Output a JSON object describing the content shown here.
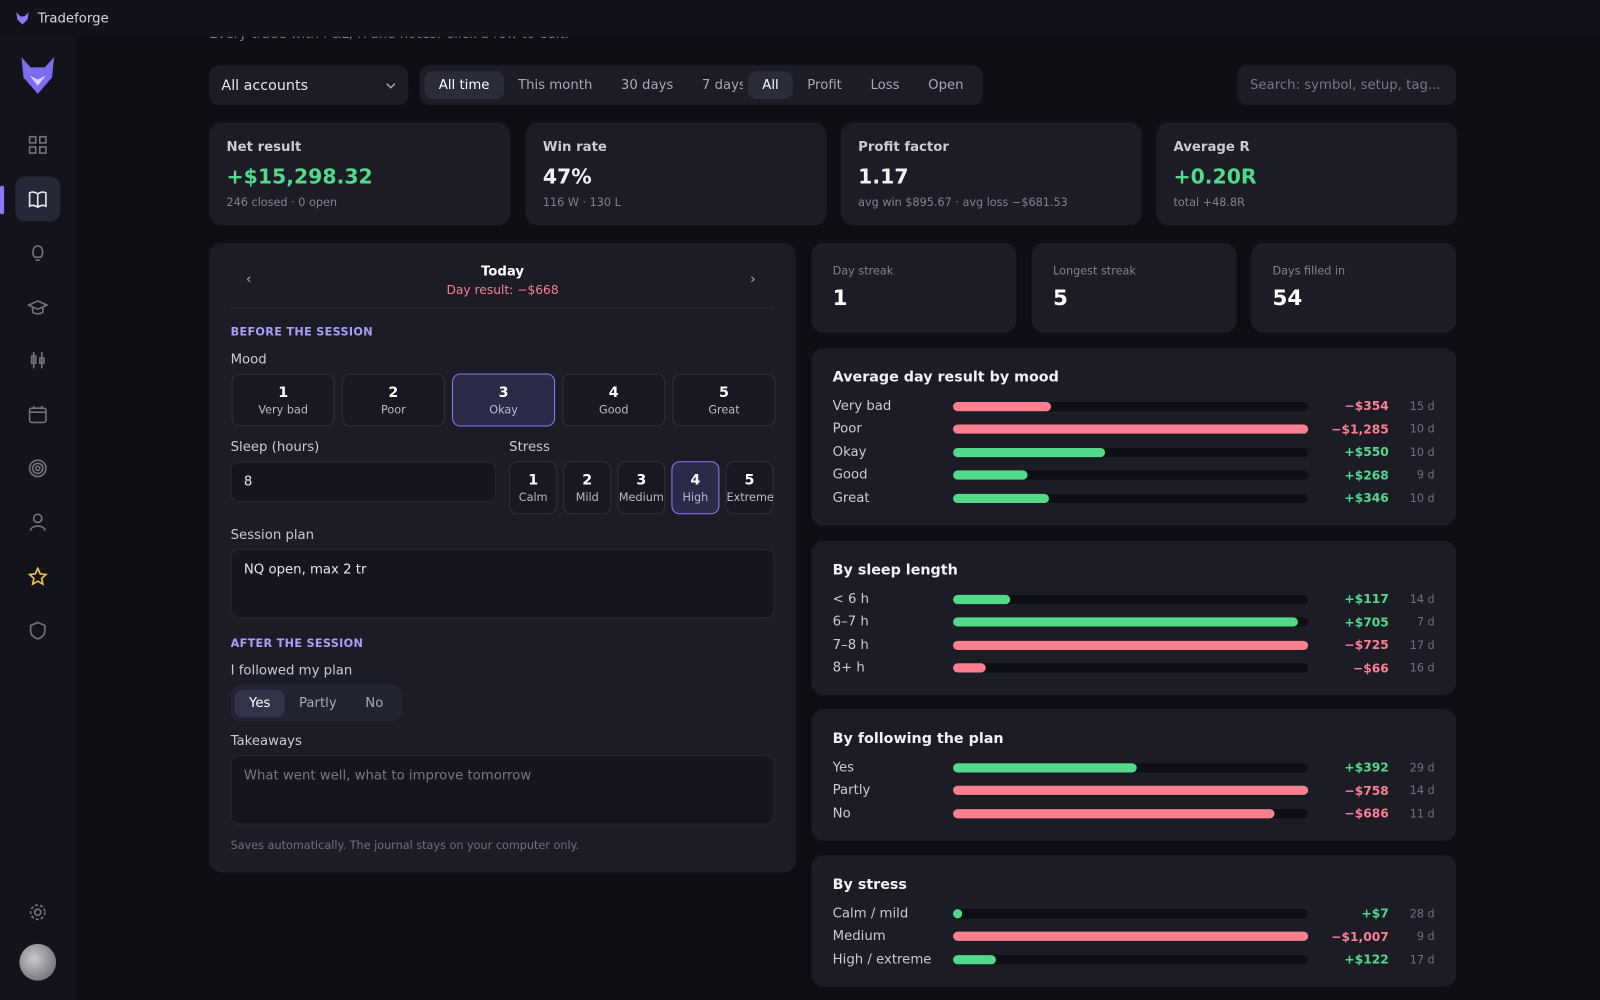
{
  "app": {
    "name": "Tradeforge"
  },
  "page": {
    "subtitle": "Every trade with P&L, R and notes. Click a row to edit."
  },
  "filters": {
    "account": "All accounts",
    "periods": [
      "All time",
      "This month",
      "30 days",
      "7 days"
    ],
    "outcomes": [
      "All",
      "Profit",
      "Loss",
      "Open"
    ],
    "search_placeholder": "Search: symbol, setup, tag..."
  },
  "stats": [
    {
      "label": "Net result",
      "value": "+$15,298.32",
      "detail": "246 closed · 0 open"
    },
    {
      "label": "Win rate",
      "value": "47%",
      "detail": "116 W · 130 L"
    },
    {
      "label": "Profit factor",
      "value": "1.17",
      "detail": "avg win $895.67 · avg loss −$681.53"
    },
    {
      "label": "Average R",
      "value": "+0.20R",
      "detail": "total +48.8R"
    }
  ],
  "journal": {
    "day": "Today",
    "day_result": "Day result: −$668",
    "before_heading": "BEFORE THE SESSION",
    "mood_label": "Mood",
    "mood_options": [
      {
        "number": 1,
        "label": "Very bad"
      },
      {
        "number": 2,
        "label": "Poor"
      },
      {
        "number": 3,
        "label": "Okay"
      },
      {
        "number": 4,
        "label": "Good"
      },
      {
        "number": 5,
        "label": "Great"
      }
    ],
    "sleep_label": "Sleep (hours)",
    "sleep_value": 8,
    "stress_label": "Stress",
    "stress_options": [
      {
        "number": 1,
        "label": "Calm"
      },
      {
        "number": 2,
        "label": "Mild"
      },
      {
        "number": 3,
        "label": "Medium"
      },
      {
        "number": 4,
        "label": "High"
      },
      {
        "number": 5,
        "label": "Extreme"
      }
    ],
    "plan_label": "Session plan",
    "plan_text": "NQ open, max 2 tr",
    "after_heading": "AFTER THE SESSION",
    "followed_label": "I followed my plan",
    "followed_options": [
      "Yes",
      "Partly",
      "No"
    ],
    "takeaways_label": "Takeaways",
    "takeaways_placeholder": "What went well, what to improve tomorrow",
    "note": "Saves automatically. The journal stays on your computer only."
  },
  "streaks": [
    {
      "label": "Day streak",
      "value": 1
    },
    {
      "label": "Longest streak",
      "value": 5
    },
    {
      "label": "Days filled in",
      "value": 54
    }
  ],
  "breakdowns": [
    {
      "title": "Average day result by mood",
      "rows": [
        {
          "label": "Very bad",
          "value": -354,
          "value_label": "−$354",
          "days": "15 d"
        },
        {
          "label": "Poor",
          "value": -1285,
          "value_label": "−$1,285",
          "days": "10 d"
        },
        {
          "label": "Okay",
          "value": 550,
          "value_label": "+$550",
          "days": "10 d"
        },
        {
          "label": "Good",
          "value": 268,
          "value_label": "+$268",
          "days": "9 d"
        },
        {
          "label": "Great",
          "value": 346,
          "value_label": "+$346",
          "days": "10 d"
        }
      ]
    },
    {
      "title": "By sleep length",
      "rows": [
        {
          "label": "< 6 h",
          "value": 117,
          "value_label": "+$117",
          "days": "14 d"
        },
        {
          "label": "6–7 h",
          "value": 705,
          "value_label": "+$705",
          "days": "7 d"
        },
        {
          "label": "7–8 h",
          "value": -725,
          "value_label": "−$725",
          "days": "17 d"
        },
        {
          "label": "8+ h",
          "value": -66,
          "value_label": "−$66",
          "days": "16 d"
        }
      ]
    },
    {
      "title": "By following the plan",
      "rows": [
        {
          "label": "Yes",
          "value": 392,
          "value_label": "+$392",
          "days": "29 d"
        },
        {
          "label": "Partly",
          "value": -758,
          "value_label": "−$758",
          "days": "14 d"
        },
        {
          "label": "No",
          "value": -686,
          "value_label": "−$686",
          "days": "11 d"
        }
      ]
    },
    {
      "title": "By stress",
      "rows": [
        {
          "label": "Calm / mild",
          "value": 7,
          "value_label": "+$7",
          "days": "28 d"
        },
        {
          "label": "Medium",
          "value": -1007,
          "value_label": "−$1,007",
          "days": "9 d"
        },
        {
          "label": "High / extreme",
          "value": 122,
          "value_label": "+$122",
          "days": "17 d"
        }
      ]
    }
  ]
}
